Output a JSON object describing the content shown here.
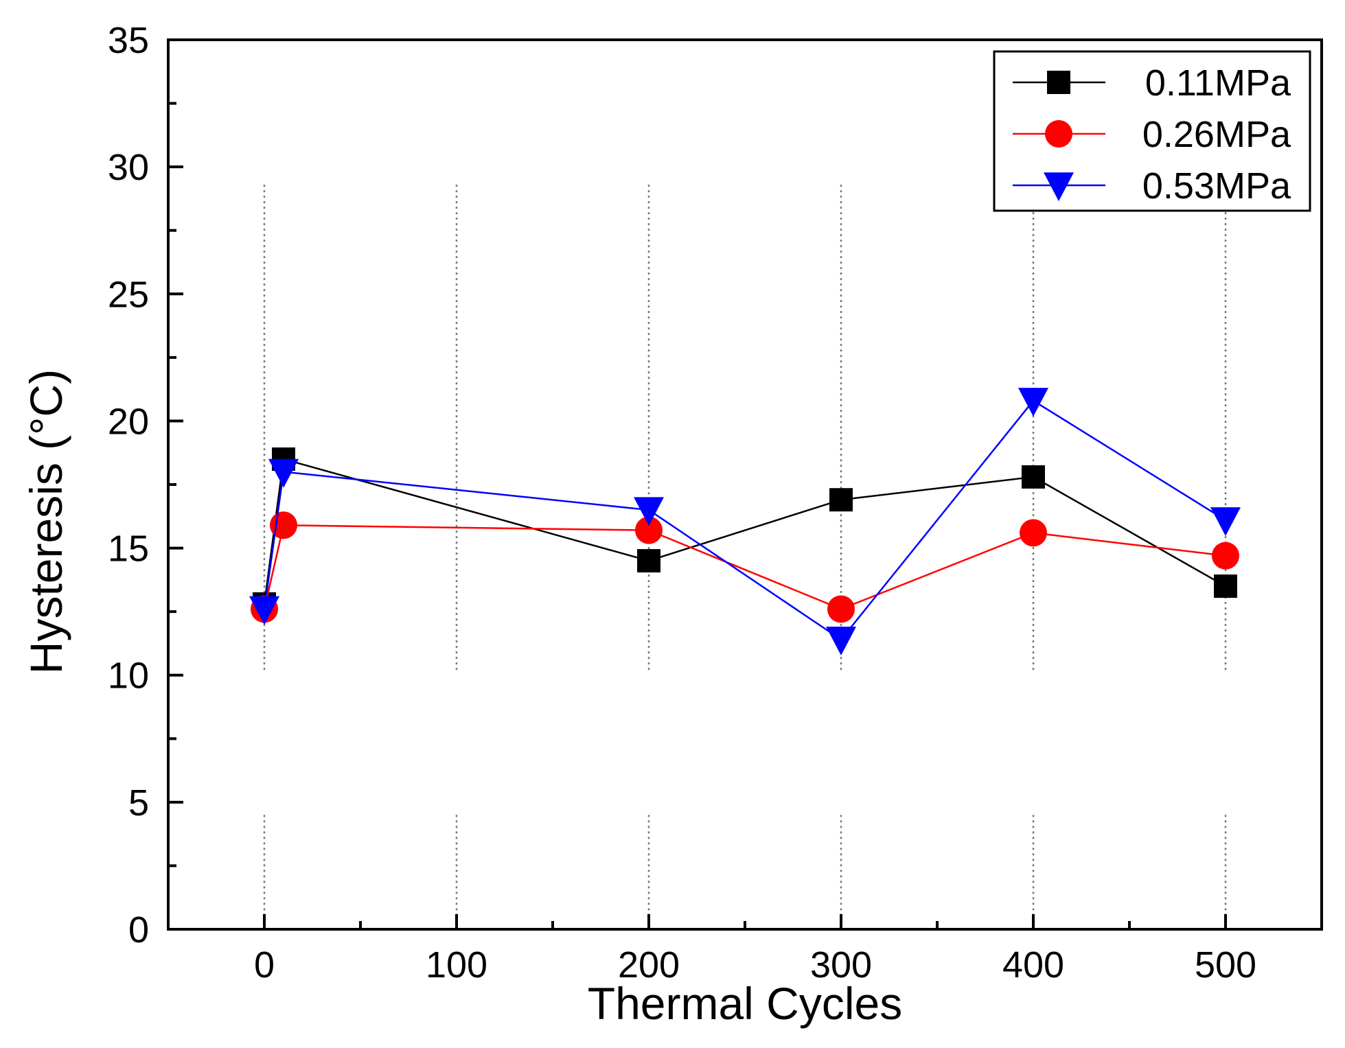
{
  "chart_data": {
    "type": "line",
    "title": "",
    "xlabel": "Thermal Cycles",
    "ylabel": "Hysteresis (°C)",
    "xlim": [
      -50,
      550
    ],
    "ylim": [
      0,
      35
    ],
    "xticks": [
      0,
      100,
      200,
      300,
      400,
      500
    ],
    "xtick_labels": [
      "0",
      "100",
      "200",
      "300",
      "400",
      "500"
    ],
    "yticks": [
      0,
      5,
      10,
      15,
      20,
      25,
      30,
      35
    ],
    "ytick_labels": [
      "0",
      "5",
      "10",
      "15",
      "20",
      "25",
      "30",
      "35"
    ],
    "grid": "vertical dotted at major x ticks",
    "legend_position": "top-right",
    "series": [
      {
        "name": "0.11MPa",
        "color": "#000000",
        "marker": "square",
        "x": [
          0,
          10,
          200,
          300,
          400,
          500
        ],
        "y": [
          12.8,
          18.5,
          14.5,
          16.9,
          17.8,
          13.5
        ]
      },
      {
        "name": "0.26MPa",
        "color": "#ff0000",
        "marker": "circle",
        "x": [
          0,
          10,
          200,
          300,
          400,
          500
        ],
        "y": [
          12.6,
          15.9,
          15.7,
          12.6,
          15.6,
          14.7
        ]
      },
      {
        "name": "0.53MPa",
        "color": "#0000ff",
        "marker": "triangle-down",
        "x": [
          0,
          10,
          200,
          300,
          400,
          500
        ],
        "y": [
          12.6,
          18.0,
          16.5,
          11.4,
          20.8,
          16.1
        ]
      }
    ]
  }
}
